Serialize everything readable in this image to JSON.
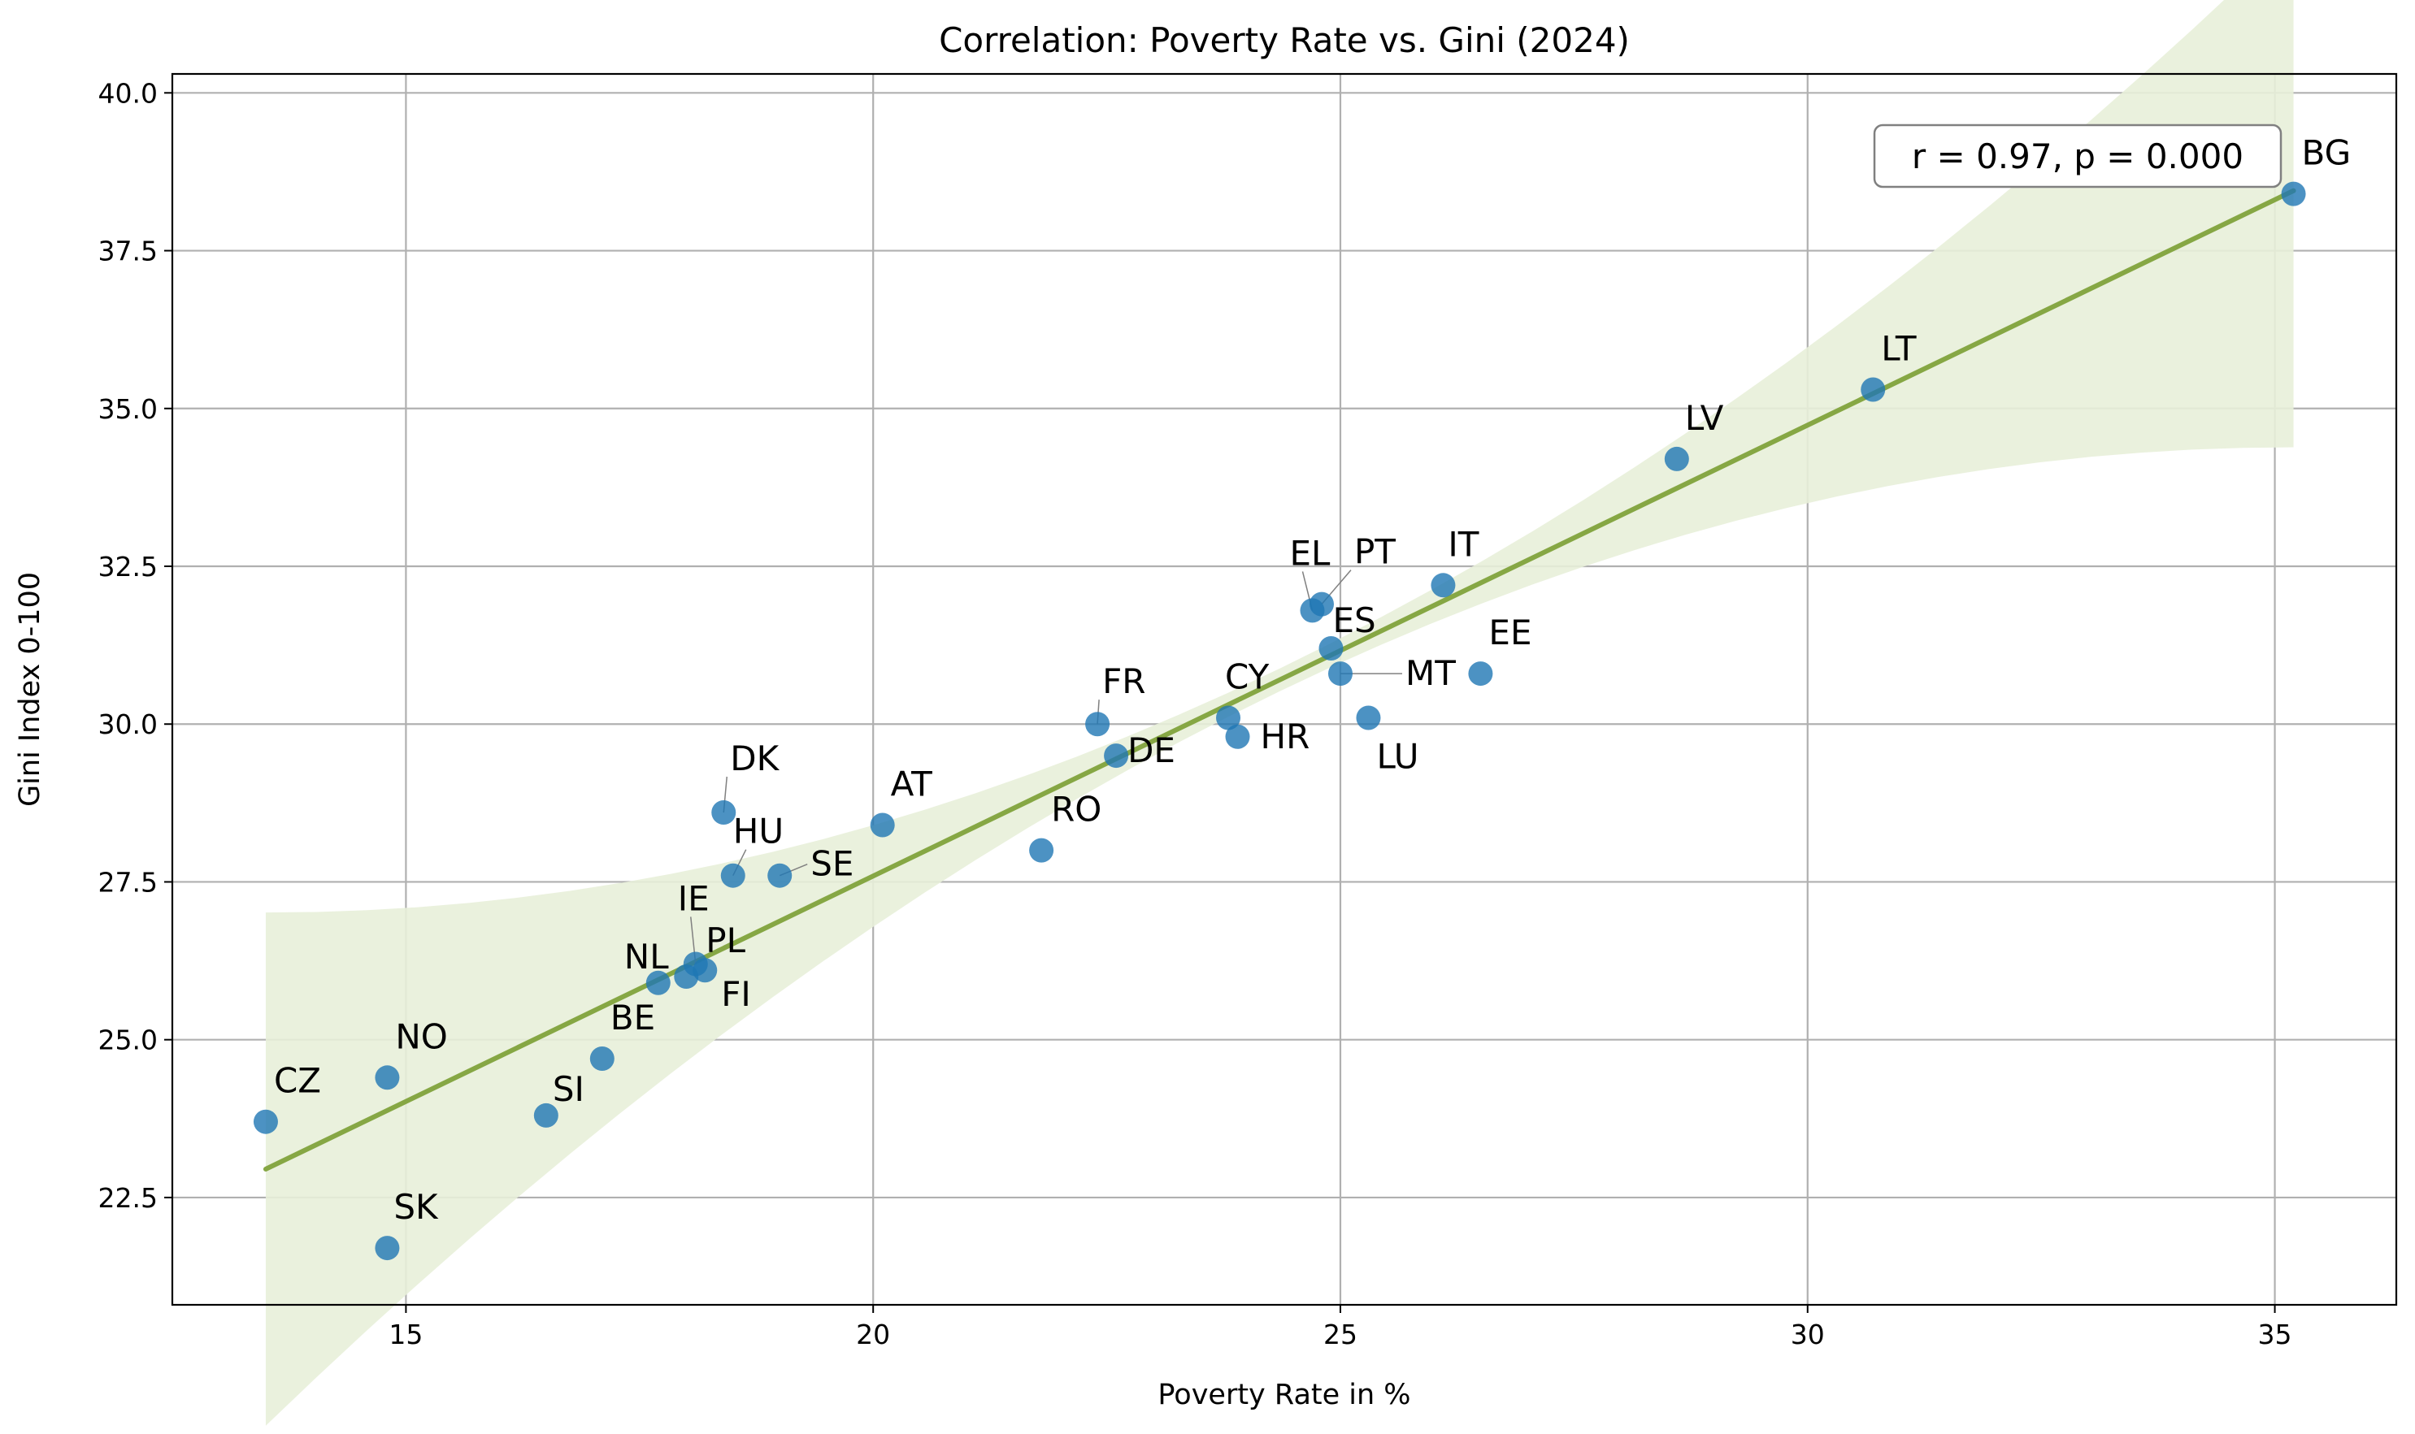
{
  "chart_data": {
    "type": "scatter",
    "title": "Correlation: Poverty Rate vs. Gini (2024)",
    "xlabel": "Poverty Rate in %",
    "ylabel": "Gini Index 0-100",
    "xlim": [
      12.5,
      36.3
    ],
    "ylim": [
      20.8,
      40.3
    ],
    "xticks": [
      "15",
      "20",
      "25",
      "30",
      "35"
    ],
    "yticks": [
      "22.5",
      "25.0",
      "27.5",
      "30.0",
      "32.5",
      "35.0",
      "37.5",
      "40.0"
    ],
    "grid": true,
    "annotation": "r = 0.97, p = 0.000",
    "regression": {
      "x": [
        13.5,
        35.2
      ],
      "y": [
        22.95,
        38.45
      ]
    },
    "colors": {
      "points": "#1f77b4",
      "line": "#86a744",
      "band": "#e8efd9"
    },
    "points": [
      {
        "label": "BG",
        "x": 35.2,
        "y": 38.4
      },
      {
        "label": "LT",
        "x": 30.7,
        "y": 35.3
      },
      {
        "label": "LV",
        "x": 28.6,
        "y": 34.2
      },
      {
        "label": "IT",
        "x": 26.1,
        "y": 32.2
      },
      {
        "label": "EL",
        "x": 24.7,
        "y": 31.8
      },
      {
        "label": "PT",
        "x": 24.8,
        "y": 31.9
      },
      {
        "label": "ES",
        "x": 24.9,
        "y": 31.2
      },
      {
        "label": "MT",
        "x": 25.0,
        "y": 30.8
      },
      {
        "label": "EE",
        "x": 26.5,
        "y": 30.8
      },
      {
        "label": "CY",
        "x": 23.8,
        "y": 30.1
      },
      {
        "label": "LU",
        "x": 25.3,
        "y": 30.1
      },
      {
        "label": "HR",
        "x": 23.9,
        "y": 29.8
      },
      {
        "label": "FR",
        "x": 22.4,
        "y": 30.0
      },
      {
        "label": "DE",
        "x": 22.6,
        "y": 29.5
      },
      {
        "label": "RO",
        "x": 21.8,
        "y": 28.0
      },
      {
        "label": "AT",
        "x": 20.1,
        "y": 28.4
      },
      {
        "label": "DK",
        "x": 18.4,
        "y": 28.6
      },
      {
        "label": "HU",
        "x": 18.5,
        "y": 27.6
      },
      {
        "label": "SE",
        "x": 19.0,
        "y": 27.6
      },
      {
        "label": "IE",
        "x": 18.1,
        "y": 26.2
      },
      {
        "label": "PL",
        "x": 18.0,
        "y": 26.0
      },
      {
        "label": "FI",
        "x": 18.2,
        "y": 26.1
      },
      {
        "label": "NL",
        "x": 17.7,
        "y": 25.9
      },
      {
        "label": "BE",
        "x": 17.1,
        "y": 24.7
      },
      {
        "label": "NO",
        "x": 14.8,
        "y": 24.4
      },
      {
        "label": "CZ",
        "x": 13.5,
        "y": 23.7
      },
      {
        "label": "SI",
        "x": 16.5,
        "y": 23.8
      },
      {
        "label": "SK",
        "x": 14.8,
        "y": 21.7
      }
    ]
  }
}
